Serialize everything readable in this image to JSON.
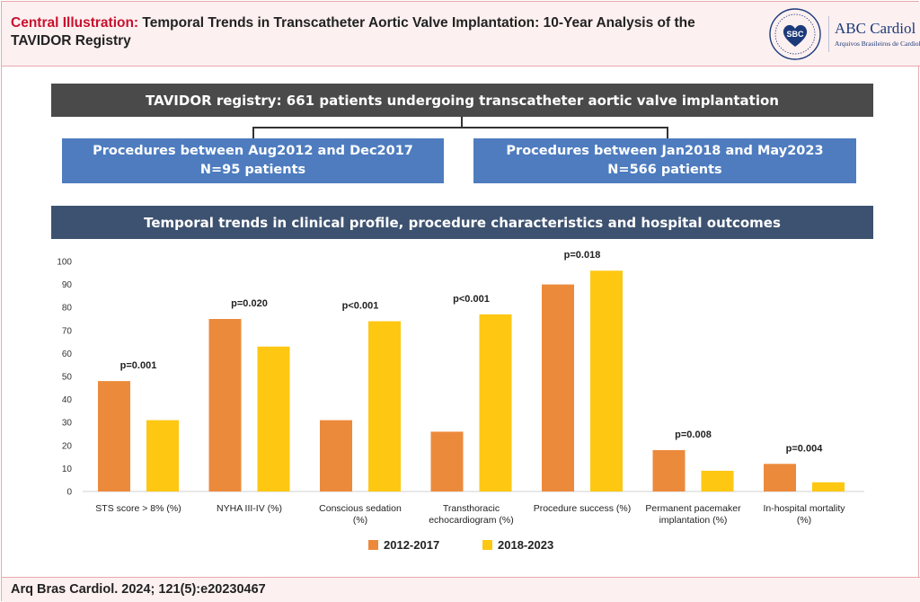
{
  "header": {
    "title_lead": "Central Illustration:",
    "title_rest": "Temporal Trends in Transcatheter Aortic Valve Implantation: 10-Year Analysis of the TAVIDOR Registry"
  },
  "logo": {
    "seal_text": "SBC",
    "journal_name": "ABC Cardiol",
    "journal_sub": "Arquivos Brasileiros de Cardiologia"
  },
  "flow": {
    "registry": "TAVIDOR registry: 661 patients undergoing transcatheter aortic valve implantation",
    "period1_line1": "Procedures between Aug2012 and Dec2017",
    "period1_line2": "N=95 patients",
    "period2_line1": "Procedures between Jan2018 and May2023",
    "period2_line2": "N=566 patients",
    "trends": "Temporal trends in clinical profile, procedure characteristics and hospital outcomes"
  },
  "colors": {
    "series1": "#ec8a3c",
    "series2": "#fec712"
  },
  "chart_data": {
    "type": "bar",
    "categories": [
      [
        "STS score > 8% (%)"
      ],
      [
        "NYHA III-IV (%)"
      ],
      [
        "Conscious sedation",
        "(%)"
      ],
      [
        "Transthoracic",
        "echocardiogram (%)"
      ],
      [
        "Procedure success (%)"
      ],
      [
        "Permanent pacemaker",
        "implantation (%)"
      ],
      [
        "In-hospital mortality",
        "(%)"
      ]
    ],
    "series": [
      {
        "name": "2012-2017",
        "values": [
          48,
          75,
          31,
          26,
          90,
          18,
          12
        ]
      },
      {
        "name": "2018-2023",
        "values": [
          31,
          63,
          74,
          77,
          96,
          9,
          4
        ]
      }
    ],
    "annotations": [
      "p=0.001",
      "p=0.020",
      "p<0.001",
      "p<0.001",
      "p=0.018",
      "p=0.008",
      "p=0.004"
    ],
    "yticks": [
      0,
      10,
      20,
      30,
      40,
      50,
      60,
      70,
      80,
      90,
      100
    ],
    "ylim": [
      0,
      100
    ],
    "grid": false,
    "legend_position": "bottom-center"
  },
  "footer": {
    "citation": "Arq Bras Cardiol. 2024; 121(5):e20230467"
  }
}
